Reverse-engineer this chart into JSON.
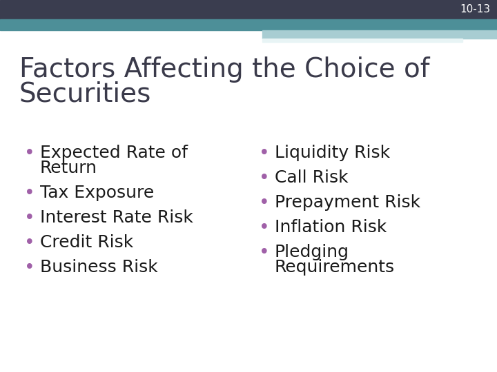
{
  "slide_number": "10-13",
  "title_line1": "Factors Affecting the Choice of",
  "title_line2": "Securities",
  "title_color": "#3a3a4a",
  "background_color": "#ffffff",
  "header_dark_color": "#3a3d4f",
  "header_teal_color": "#4d8f98",
  "header_light_color": "#a8cdd2",
  "header_white_color": "#e8f4f5",
  "slide_num_color": "#ffffff",
  "bullet_color": "#a060a8",
  "text_color": "#1a1a1a",
  "left_bullet_lines": [
    [
      "Expected Rate of",
      "Return"
    ],
    [
      "Tax Exposure"
    ],
    [
      "Interest Rate Risk"
    ],
    [
      "Credit Risk"
    ],
    [
      "Business Risk"
    ]
  ],
  "right_bullet_lines": [
    [
      "Liquidity Risk"
    ],
    [
      "Call Risk"
    ],
    [
      "Prepayment Risk"
    ],
    [
      "Inflation Risk"
    ],
    [
      "Pledging",
      "Requirements"
    ]
  ],
  "title_fontsize": 28,
  "bullet_fontsize": 18,
  "slide_num_fontsize": 11
}
